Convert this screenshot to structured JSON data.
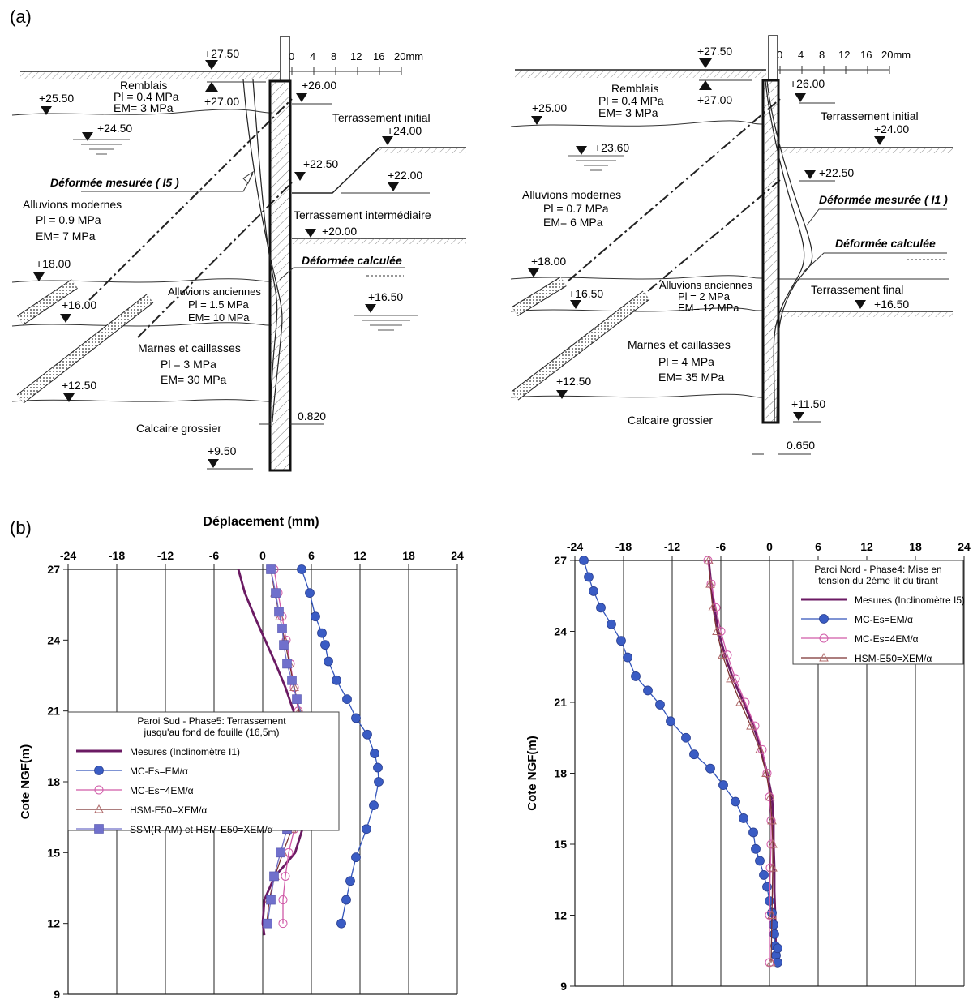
{
  "panel_labels": {
    "a": "(a)",
    "b": "(b)"
  },
  "section_a": {
    "left": {
      "scale_ticks": [
        "0",
        "4",
        "8",
        "12",
        "16",
        "20mm"
      ],
      "levels": {
        "top": "+27.50",
        "anchor_top": "+27.00",
        "water": "+24.50",
        "remb_base": "+25.50",
        "wall_top": "+26.00",
        "ex_initial": "+24.00",
        "ex_step": "+22.50",
        "ex_step2": "+22.00",
        "ex_inter": "+20.00",
        "water2": "+16.50",
        "all_anc": "+18.00",
        "marnes": "+16.00",
        "calcaire": "+12.50",
        "bottom": "+9.50"
      },
      "layers": {
        "remblais": [
          "Remblais",
          "Pl = 0.4 MPa",
          "EM= 3  MPa"
        ],
        "alluvions_modernes": [
          "Alluvions modernes",
          "Pl = 0.9 MPa",
          "EM= 7 MPa"
        ],
        "alluvions_anciennes": [
          "Alluvions anciennes",
          "Pl = 1.5 MPa",
          "EM= 10 MPa"
        ],
        "marnes": [
          "Marnes et caillasses",
          "Pl = 3 MPa",
          "EM= 30 MPa"
        ],
        "calcaire": "Calcaire grossier"
      },
      "labels": {
        "terr_initial": "Terrassement initial",
        "terr_inter": "Terrassement intermédiaire",
        "def_mesuree": "Déformée mesurée ( I5 )",
        "def_calculee": "Déformée calculée",
        "thickness": "0.820"
      }
    },
    "right": {
      "scale_ticks": [
        "0",
        "4",
        "8",
        "12",
        "16",
        "20mm"
      ],
      "levels": {
        "top": "+27.50",
        "anchor_top": "+27.00",
        "remb_base": "+25.00",
        "water": "+23.60",
        "wall_top": "+26.00",
        "ex_initial": "+24.00",
        "step": "+22.50",
        "all_anc": "+18.00",
        "marnes": "+16.50",
        "ex_final": "+16.50",
        "calcaire": "+12.50",
        "bottom": "+11.50"
      },
      "layers": {
        "remblais": [
          "Remblais",
          "Pl = 0.4 MPa",
          "EM= 3  MPa"
        ],
        "alluvions_modernes": [
          "Alluvions modernes",
          "Pl = 0.7 MPa",
          "EM= 6 MPa"
        ],
        "alluvions_anciennes": [
          "Alluvions anciennes",
          "Pl = 2 MPa",
          "EM= 12 MPa"
        ],
        "marnes": [
          "Marnes et caillasses",
          "Pl = 4 MPa",
          "EM= 35 MPa"
        ],
        "calcaire": "Calcaire grossier"
      },
      "labels": {
        "terr_initial": "Terrassement initial",
        "terr_final": "Terrassement  final",
        "def_mesuree": "Déformée mesurée ( I1 )",
        "def_calculee": "Déformée calculée",
        "thickness": "0.650"
      }
    }
  },
  "chart_data": [
    {
      "type": "line",
      "title": "Déplacement (mm)",
      "xlabel": "Déplacement (mm)",
      "ylabel": "Cote NGF(m)",
      "xlim": [
        -24,
        24
      ],
      "ylim": [
        9,
        27
      ],
      "xticks": [
        "-24",
        "-18",
        "-12",
        "-6",
        "0",
        "6",
        "12",
        "18",
        "24"
      ],
      "yticks": [
        "27",
        "24",
        "21",
        "18",
        "15",
        "12",
        "9"
      ],
      "legend_title": [
        "Paroi Sud - Phase5: Terrassement",
        "jusqu'au fond de fouille (16,5m)"
      ],
      "legend_position": "middle-left",
      "series": [
        {
          "name": "Mesures (Inclinomètre I1)",
          "color": "#6b1a63",
          "marker": "none",
          "x": [
            -3,
            -2.2,
            -1,
            0.3,
            1.6,
            2.8,
            3.8,
            4.6,
            5.2,
            5.6,
            5.5,
            4.9,
            4.0,
            2.8,
            1.5,
            0.2,
            0,
            0.2
          ],
          "y": [
            27,
            26,
            25,
            24,
            23,
            22,
            21,
            20,
            19,
            18,
            17,
            16,
            15,
            14.5,
            14,
            13,
            12,
            11.5
          ]
        },
        {
          "name": "MC-Es=EM/α",
          "color": "#3355bb",
          "marker": "circle-filled",
          "x": [
            4.8,
            5.8,
            6.5,
            7.3,
            7.7,
            8.1,
            9.1,
            10.4,
            11.5,
            12.9,
            13.8,
            14.2,
            14.3,
            13.7,
            12.8,
            11.5,
            10.8,
            10.3,
            9.7
          ],
          "y": [
            27,
            26,
            25,
            24.3,
            23.8,
            23.1,
            22.3,
            21.5,
            20.7,
            20,
            19.2,
            18.6,
            18,
            17,
            16,
            14.8,
            13.8,
            13,
            12
          ]
        },
        {
          "name": "MC-Es=4EM/α",
          "color": "#d05aa8",
          "marker": "circle-open",
          "x": [
            1.4,
            1.9,
            2.4,
            2.9,
            3.4,
            3.9,
            4.4,
            4.9,
            5.2,
            5.1,
            4.6,
            3.9,
            3.2,
            2.8,
            2.5,
            2.5
          ],
          "y": [
            27,
            26,
            25,
            24,
            23,
            22,
            21,
            20,
            19,
            18,
            17,
            16,
            15,
            14,
            13,
            12
          ]
        },
        {
          "name": "HSM-E50=XEM/α",
          "color": "#7a3030",
          "marker": "triangle-open",
          "x": [
            1.0,
            1.5,
            2.1,
            2.7,
            3.3,
            3.9,
            4.5,
            5.0,
            5.3,
            5.2,
            4.6,
            3.6,
            2.5,
            1.5,
            0.8,
            0.5
          ],
          "y": [
            27,
            26,
            25,
            24,
            23,
            22,
            21,
            20,
            19,
            18,
            17,
            16,
            15,
            14,
            13,
            12
          ]
        },
        {
          "name": "SSM(R-AM) et HSM-E50=XEM/α",
          "color": "#6f6fc6",
          "marker": "square-filled",
          "x": [
            1.0,
            1.6,
            2.0,
            2.4,
            2.6,
            3.0,
            3.6,
            4.2,
            4.9,
            5.4,
            5.3,
            4.8,
            4.0,
            3.0,
            2.2,
            1.4,
            1.0,
            0.6
          ],
          "y": [
            27,
            26,
            25.2,
            24.5,
            23.8,
            23,
            22.3,
            21.5,
            20.7,
            19.7,
            18.6,
            18,
            17,
            16,
            15,
            14,
            13,
            12
          ]
        }
      ]
    },
    {
      "type": "line",
      "title": "",
      "xlabel": "",
      "ylabel": "Cote NGF(m)",
      "xlim": [
        -24,
        24
      ],
      "ylim": [
        9,
        27
      ],
      "xticks": [
        "-24",
        "-18",
        "-12",
        "-6",
        "0",
        "6",
        "12",
        "18",
        "24"
      ],
      "yticks": [
        "27",
        "24",
        "21",
        "18",
        "15",
        "12",
        "9"
      ],
      "legend_title": [
        "Paroi Nord - Phase4: Mise en",
        "tension du 2ème lit du tirant"
      ],
      "legend_position": "top-right",
      "series": [
        {
          "name": "Mesures (Inclinomètre I5)",
          "color": "#6b1a63",
          "marker": "none",
          "x": [
            -7.5,
            -7.2,
            -6.8,
            -6.3,
            -5.5,
            -4.5,
            -3.2,
            -2.0,
            -1.0,
            -0.3,
            0.3,
            0.5,
            0.5,
            0.6,
            0.6,
            0.7,
            0.8
          ],
          "y": [
            27,
            26,
            25,
            24,
            23,
            22,
            21,
            20,
            19,
            18,
            17,
            16,
            15,
            14,
            13,
            12,
            10
          ]
        },
        {
          "name": "MC-Es=EM/α",
          "color": "#3355bb",
          "marker": "circle-filled",
          "x": [
            -22.9,
            -22.3,
            -21.7,
            -20.8,
            -19.5,
            -18.3,
            -17.5,
            -16.5,
            -15,
            -13.5,
            -12.2,
            -10.3,
            -9.3,
            -7.3,
            -5.7,
            -4.2,
            -3.2,
            -2,
            -1.7,
            -1.2,
            -0.7,
            -0.3,
            0,
            0.3,
            0.5,
            0.6,
            0.7,
            0.8,
            1.0,
            1.0
          ],
          "y": [
            27,
            26.3,
            25.7,
            25,
            24.3,
            23.6,
            22.9,
            22.1,
            21.5,
            20.9,
            20.2,
            19.5,
            18.8,
            18.2,
            17.5,
            16.8,
            16.1,
            15.5,
            14.8,
            14.3,
            13.7,
            13.2,
            12.6,
            12.1,
            11.6,
            11.2,
            10.7,
            10.3,
            10.6,
            10
          ]
        },
        {
          "name": "MC-Es=4EM/α",
          "color": "#d05aa8",
          "marker": "circle-open",
          "x": [
            -7.6,
            -7.2,
            -6.6,
            -6.0,
            -5.2,
            -4.2,
            -3.0,
            -1.8,
            -0.9,
            -0.3,
            0.0,
            0.2,
            0.2,
            0.1,
            0.0,
            0.0
          ],
          "y": [
            27,
            26,
            25,
            24,
            23,
            22,
            21,
            20,
            19,
            18,
            17,
            16,
            15,
            14,
            12,
            10
          ]
        },
        {
          "name": "HSM-E50=XEM/α",
          "color": "#7a3030",
          "marker": "triangle-open",
          "x": [
            -7.5,
            -7.3,
            -7.0,
            -6.5,
            -5.8,
            -4.8,
            -3.6,
            -2.3,
            -1.2,
            -0.4,
            0.1,
            0.3,
            0.4,
            0.4,
            0.3,
            0.2
          ],
          "y": [
            27,
            26,
            25,
            24,
            23,
            22,
            21,
            20,
            19,
            18,
            17,
            16,
            15,
            14,
            12,
            10
          ]
        }
      ]
    }
  ]
}
